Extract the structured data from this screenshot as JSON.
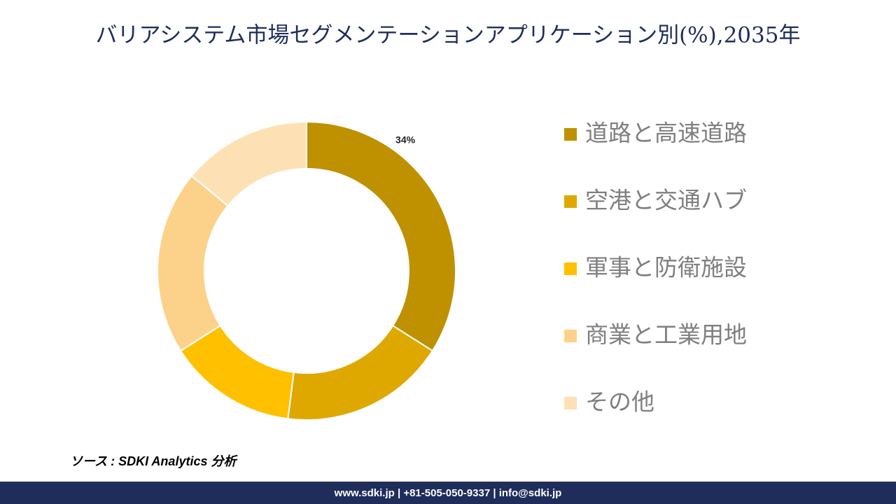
{
  "chart_data": {
    "type": "donut",
    "title": "バリアシステム市場セグメンテーションアプリケーション別(%),2035年",
    "categories": [
      "道路と高速道路",
      "空港と交通ハブ",
      "軍事と防衛施設",
      "商業と工業用地",
      "その他"
    ],
    "values": [
      34,
      18,
      14,
      20,
      14
    ],
    "value_labels": [
      "34%",
      null,
      null,
      null,
      null
    ],
    "colors": [
      "#BF9000",
      "#DFA800",
      "#FFC000",
      "#FCD28A",
      "#FDE1B5"
    ],
    "source": "ソース : SDKI Analytics 分析",
    "footer": "www.sdki.jp | +81-505-050-9337 | info@sdki.jp"
  }
}
